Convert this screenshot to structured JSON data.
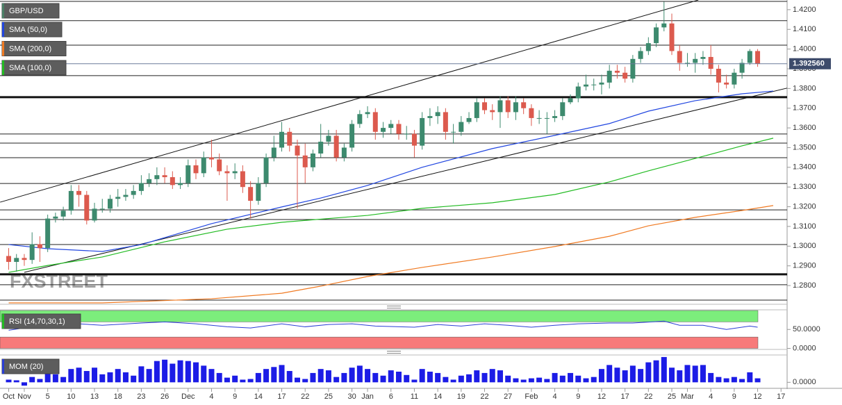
{
  "chart_data": [
    {
      "type": "candlestick",
      "xlim": [
        -1.113,
        99.78
      ],
      "ylim": [
        1.2705,
        1.4249
      ],
      "yticks": [
        {
          "value": 1.28,
          "label": "1.2800"
        },
        {
          "value": 1.29,
          "label": "1.2900"
        },
        {
          "value": 1.3,
          "label": "1.3000"
        },
        {
          "value": 1.31,
          "label": "1.3100"
        },
        {
          "value": 1.32,
          "label": "1.3200"
        },
        {
          "value": 1.33,
          "label": "1.3300"
        },
        {
          "value": 1.34,
          "label": "1.3400"
        },
        {
          "value": 1.35,
          "label": "1.3500"
        },
        {
          "value": 1.36,
          "label": "1.3600"
        },
        {
          "value": 1.37,
          "label": "1.3700"
        },
        {
          "value": 1.38,
          "label": "1.3800"
        },
        {
          "value": 1.39,
          "label": "1.3900"
        },
        {
          "value": 1.4,
          "label": "1.4000"
        },
        {
          "value": 1.41,
          "label": "1.4100"
        },
        {
          "value": 1.42,
          "label": "1.4200"
        }
      ],
      "candles": {
        "name": "GBP/USD",
        "up_color": "#3d8a6e",
        "down_color": "#dc5a4e",
        "legend_color": "#4a8066",
        "open": [
          1.295,
          1.292,
          1.294,
          1.293,
          1.301,
          1.299,
          1.314,
          1.315,
          1.318,
          1.328,
          1.326,
          1.313,
          1.319,
          1.319,
          1.324,
          1.325,
          1.326,
          1.328,
          1.332,
          1.334,
          1.336,
          1.335,
          1.331,
          1.332,
          1.341,
          1.337,
          1.345,
          1.344,
          1.338,
          1.337,
          1.338,
          1.33,
          1.323,
          1.332,
          1.345,
          1.35,
          1.358,
          1.351,
          1.346,
          1.34,
          1.347,
          1.353,
          1.356,
          1.345,
          1.35,
          1.362,
          1.367,
          1.368,
          1.358,
          1.36,
          1.362,
          1.357,
          1.357,
          1.351,
          1.365,
          1.366,
          1.368,
          1.358,
          1.358,
          1.363,
          1.365,
          1.373,
          1.369,
          1.368,
          1.374,
          1.368,
          1.373,
          1.37,
          1.365,
          1.365,
          1.365,
          1.366,
          1.373,
          1.375,
          1.381,
          1.382,
          1.382,
          1.383,
          1.389,
          1.388,
          1.385,
          1.395,
          1.399,
          1.403,
          1.411,
          1.413,
          1.399,
          1.393,
          1.393,
          1.395,
          1.396,
          1.39,
          1.383,
          1.382,
          1.388,
          1.393,
          1.399
        ],
        "high": [
          1.299,
          1.296,
          1.296,
          1.307,
          1.305,
          1.316,
          1.317,
          1.32,
          1.331,
          1.331,
          1.328,
          1.322,
          1.324,
          1.326,
          1.329,
          1.329,
          1.331,
          1.336,
          1.337,
          1.34,
          1.34,
          1.338,
          1.335,
          1.344,
          1.344,
          1.348,
          1.354,
          1.347,
          1.341,
          1.342,
          1.341,
          1.333,
          1.335,
          1.347,
          1.356,
          1.363,
          1.36,
          1.354,
          1.352,
          1.349,
          1.362,
          1.359,
          1.359,
          1.352,
          1.364,
          1.369,
          1.371,
          1.37,
          1.363,
          1.364,
          1.364,
          1.361,
          1.359,
          1.368,
          1.37,
          1.371,
          1.37,
          1.362,
          1.366,
          1.368,
          1.375,
          1.375,
          1.372,
          1.376,
          1.376,
          1.376,
          1.375,
          1.372,
          1.369,
          1.368,
          1.369,
          1.375,
          1.377,
          1.383,
          1.387,
          1.385,
          1.387,
          1.392,
          1.392,
          1.391,
          1.397,
          1.401,
          1.406,
          1.413,
          1.424,
          1.418,
          1.402,
          1.398,
          1.398,
          1.399,
          1.402,
          1.392,
          1.387,
          1.39,
          1.395,
          1.4,
          1.4
        ],
        "low": [
          1.288,
          1.287,
          1.29,
          1.291,
          1.292,
          1.297,
          1.312,
          1.313,
          1.316,
          1.32,
          1.311,
          1.312,
          1.317,
          1.317,
          1.32,
          1.323,
          1.324,
          1.326,
          1.33,
          1.331,
          1.332,
          1.329,
          1.329,
          1.33,
          1.334,
          1.335,
          1.34,
          1.336,
          1.323,
          1.334,
          1.327,
          1.314,
          1.321,
          1.33,
          1.343,
          1.348,
          1.348,
          1.319,
          1.332,
          1.338,
          1.345,
          1.351,
          1.343,
          1.343,
          1.348,
          1.36,
          1.365,
          1.354,
          1.355,
          1.357,
          1.354,
          1.354,
          1.345,
          1.349,
          1.361,
          1.362,
          1.354,
          1.352,
          1.356,
          1.362,
          1.363,
          1.367,
          1.364,
          1.36,
          1.365,
          1.364,
          1.367,
          1.361,
          1.362,
          1.357,
          1.363,
          1.364,
          1.372,
          1.373,
          1.379,
          1.379,
          1.377,
          1.38,
          1.385,
          1.383,
          1.383,
          1.393,
          1.397,
          1.401,
          1.409,
          1.397,
          1.389,
          1.391,
          1.388,
          1.392,
          1.387,
          1.378,
          1.38,
          1.38,
          1.385,
          1.392,
          1.391
        ],
        "close": [
          1.292,
          1.294,
          1.293,
          1.301,
          1.299,
          1.314,
          1.315,
          1.318,
          1.328,
          1.326,
          1.313,
          1.319,
          1.319,
          1.324,
          1.325,
          1.326,
          1.328,
          1.332,
          1.334,
          1.336,
          1.335,
          1.331,
          1.332,
          1.341,
          1.337,
          1.345,
          1.344,
          1.338,
          1.337,
          1.338,
          1.33,
          1.323,
          1.332,
          1.345,
          1.35,
          1.358,
          1.351,
          1.346,
          1.34,
          1.347,
          1.353,
          1.356,
          1.345,
          1.35,
          1.362,
          1.367,
          1.368,
          1.358,
          1.36,
          1.362,
          1.357,
          1.357,
          1.351,
          1.365,
          1.366,
          1.368,
          1.358,
          1.358,
          1.363,
          1.365,
          1.373,
          1.369,
          1.368,
          1.374,
          1.368,
          1.373,
          1.37,
          1.365,
          1.365,
          1.365,
          1.366,
          1.373,
          1.375,
          1.381,
          1.382,
          1.382,
          1.383,
          1.389,
          1.388,
          1.385,
          1.395,
          1.399,
          1.403,
          1.411,
          1.413,
          1.399,
          1.393,
          1.393,
          1.395,
          1.396,
          1.39,
          1.383,
          1.382,
          1.388,
          1.393,
          1.399,
          1.39256
        ]
      },
      "lines": [
        {
          "name": "SMA (50,0)",
          "color": "#2146e0",
          "x": [
            0,
            5,
            12,
            17,
            26,
            35,
            40,
            46,
            53,
            62,
            70,
            77,
            82,
            88,
            94,
            98
          ],
          "values": [
            1.3008,
            1.2987,
            1.2973,
            1.3008,
            1.3114,
            1.3199,
            1.3244,
            1.3308,
            1.34,
            1.3495,
            1.3562,
            1.3622,
            1.3685,
            1.3738,
            1.3773,
            1.3787
          ]
        },
        {
          "name": "SMA (200,0)",
          "color": "#f07a22",
          "x": [
            0,
            12,
            26,
            35,
            40,
            46,
            53,
            62,
            70,
            77,
            82,
            88,
            94,
            98
          ],
          "values": [
            1.2712,
            1.2712,
            1.2733,
            1.2761,
            1.2797,
            1.2846,
            1.2892,
            1.2945,
            1.2998,
            1.305,
            1.3103,
            1.3146,
            1.3181,
            1.3206
          ]
        },
        {
          "name": "SMA (100,0)",
          "color": "#22bb22",
          "x": [
            0,
            5,
            12,
            20,
            28,
            35,
            46,
            53,
            62,
            70,
            77,
            82,
            88,
            94,
            98
          ],
          "values": [
            1.2867,
            1.2902,
            1.2945,
            1.3022,
            1.3086,
            1.3121,
            1.3156,
            1.3192,
            1.322,
            1.3262,
            1.3326,
            1.3382,
            1.3445,
            1.3509,
            1.3548
          ]
        }
      ],
      "levels": [
        1.4242,
        1.4144,
        1.402,
        1.3865,
        1.3569,
        1.3523,
        1.3449,
        1.3318,
        1.3184,
        1.3135,
        1.3008,
        1.2804,
        1.2726
      ],
      "thick_levels": [
        1.3756,
        1.2857
      ],
      "trendlines": [
        {
          "x": [
            -1.1,
            88.4
          ],
          "values": [
            1.3223,
            1.4249
          ]
        },
        {
          "x": [
            2,
            99.78
          ],
          "values": [
            1.2867,
            1.3802
          ]
        }
      ],
      "last_price": {
        "value": 1.39256,
        "label": "1.392560"
      },
      "watermark": "FXSTREET"
    },
    {
      "type": "line",
      "xlim": [
        -1.113,
        99.78
      ],
      "ylim": [
        0,
        100
      ],
      "yticks": [
        {
          "value": 50,
          "label": "50.0000"
        },
        {
          "value": 0,
          "label": "0.0000"
        }
      ],
      "bands": [
        {
          "range": [
            70,
            100
          ],
          "color": "#7ced7c"
        },
        {
          "range": [
            0,
            30
          ],
          "color": "#f77a7a"
        }
      ],
      "series": [
        {
          "name": "RSI (14,70,30,1)",
          "color": "#2a3ed6",
          "legend_color": "#22bb22",
          "x": [
            0,
            3,
            6,
            9,
            12,
            17,
            20,
            24,
            28,
            31,
            35,
            38,
            41,
            44,
            47,
            52,
            55,
            58,
            61,
            64,
            67,
            70,
            73,
            77,
            80,
            84,
            86,
            89,
            92,
            95,
            96
          ],
          "values": [
            48,
            57,
            63,
            65,
            61,
            67,
            70,
            65,
            57,
            54,
            65,
            57,
            63,
            65,
            59,
            56,
            63,
            59,
            65,
            61,
            56,
            61,
            65,
            67,
            67,
            72,
            61,
            61,
            50,
            59,
            56
          ]
        }
      ]
    },
    {
      "type": "bar",
      "ylim": [
        -0.008,
        0.04
      ],
      "yticks": [
        {
          "value": 0,
          "label": "0.0000"
        }
      ],
      "categories": [
        "Oct",
        null,
        "Nov",
        null,
        null,
        "5",
        null,
        null,
        "10",
        null,
        null,
        "13",
        null,
        null,
        "18",
        null,
        null,
        "23",
        null,
        null,
        "26",
        null,
        null,
        "Dec",
        null,
        null,
        "4",
        null,
        null,
        "9",
        null,
        null,
        "14",
        null,
        null,
        "17",
        null,
        null,
        "22",
        null,
        null,
        "25",
        null,
        null,
        "30",
        null,
        "Jan",
        null,
        null,
        "6",
        null,
        null,
        "11",
        null,
        null,
        "14",
        null,
        null,
        "19",
        null,
        null,
        "22",
        null,
        null,
        "27",
        null,
        null,
        "Feb",
        null,
        null,
        "4",
        null,
        null,
        "9",
        null,
        null,
        "12",
        null,
        null,
        "17",
        null,
        null,
        "22",
        null,
        null,
        "25",
        null,
        "Mar",
        null,
        null,
        "4",
        null,
        null,
        "9",
        null,
        null,
        "12",
        null,
        null,
        "17"
      ],
      "series": [
        {
          "name": "MOM (20)",
          "color": "#1c1ce6",
          "legend_color": "#2a3ed6",
          "values": [
            0.004,
            0.003,
            -0.005,
            0.008,
            0.005,
            0.017,
            0.012,
            0.008,
            0.02,
            0.022,
            0.017,
            0.022,
            0.012,
            0.015,
            0.02,
            0.015,
            0.01,
            0.024,
            0.02,
            0.032,
            0.034,
            0.028,
            0.033,
            0.032,
            0.03,
            0.025,
            0.02,
            0.014,
            0.007,
            0.01,
            0.004,
            0.005,
            0.014,
            0.02,
            0.023,
            0.026,
            0.017,
            0.007,
            0.005,
            0.014,
            0.02,
            0.018,
            0.008,
            0.014,
            0.022,
            0.025,
            0.02,
            0.014,
            0.01,
            0.018,
            0.016,
            0.011,
            0.004,
            0.02,
            0.016,
            0.014,
            0.008,
            0.004,
            0.01,
            0.012,
            0.018,
            0.014,
            0.02,
            0.018,
            0.01,
            0.006,
            0.004,
            0.006,
            0.007,
            0.005,
            0.014,
            0.01,
            0.014,
            0.01,
            0.006,
            0.008,
            0.02,
            0.026,
            0.022,
            0.018,
            0.025,
            0.02,
            0.03,
            0.033,
            0.038,
            0.022,
            0.018,
            0.026,
            0.025,
            0.026,
            0.014,
            0.008,
            0.006,
            0.008,
            0.005,
            0.015,
            0.006,
            null,
            null,
            null
          ]
        }
      ]
    }
  ]
}
